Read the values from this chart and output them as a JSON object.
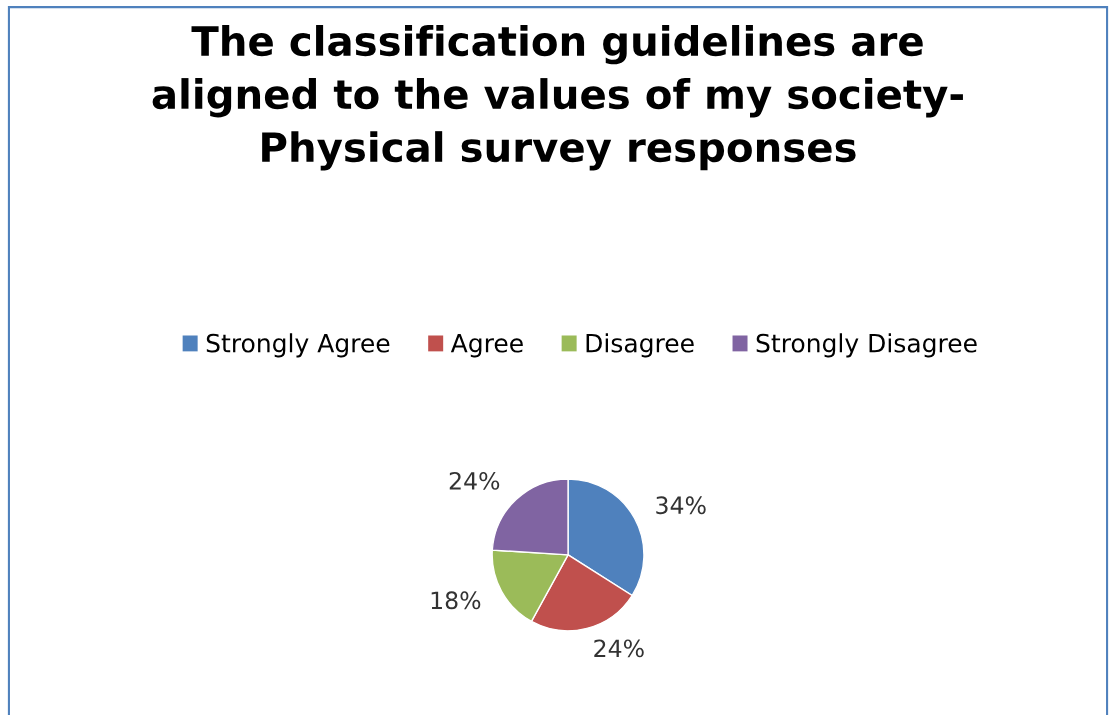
{
  "chart_data": {
    "type": "pie",
    "title": "The classification guidelines are\naligned to the values of my society-\nPhysical survey responses",
    "categories": [
      "Strongly Agree",
      "Agree",
      "Disagree",
      "Strongly Disagree"
    ],
    "values": [
      34,
      24,
      18,
      24
    ],
    "value_labels": [
      "34%",
      "24%",
      "18%",
      "24%"
    ],
    "colors": [
      "#4f81bd",
      "#c0504d",
      "#9bbb59",
      "#8064a2"
    ],
    "legend": "top"
  }
}
